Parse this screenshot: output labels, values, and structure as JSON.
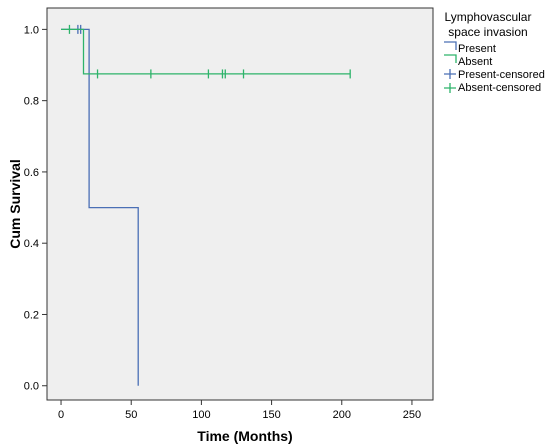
{
  "chart_data": {
    "type": "line",
    "title": "",
    "xlabel": "Time (Months)",
    "ylabel": "Cum Survival",
    "xlim": [
      -10,
      265
    ],
    "ylim": [
      -0.04,
      1.06
    ],
    "xticks": [
      "0",
      "50",
      "100",
      "150",
      "200",
      "250"
    ],
    "yticks": [
      "0.0",
      "0.2",
      "0.4",
      "0.6",
      "0.8",
      "1.0"
    ],
    "grid": false,
    "legend": {
      "title_lines": [
        "Lymphovascular",
        "space invasion"
      ],
      "placement": "right",
      "entries": [
        "Present",
        "Absent",
        "Present-censored",
        "Absent-censored"
      ]
    },
    "series": [
      {
        "name": "Present",
        "color": "#4a6fb5",
        "steps": [
          [
            0,
            1.0
          ],
          [
            20,
            1.0
          ],
          [
            20,
            0.5
          ],
          [
            55,
            0.5
          ],
          [
            55,
            0.0
          ]
        ],
        "censored": [
          [
            12,
            1.0
          ],
          [
            14,
            1.0
          ]
        ]
      },
      {
        "name": "Absent",
        "color": "#2db36a",
        "steps": [
          [
            0,
            1.0
          ],
          [
            16,
            1.0
          ],
          [
            16,
            0.875
          ],
          [
            206,
            0.875
          ]
        ],
        "censored": [
          [
            6,
            1.0
          ],
          [
            26,
            0.875
          ],
          [
            64,
            0.875
          ],
          [
            105,
            0.875
          ],
          [
            115,
            0.875
          ],
          [
            117,
            0.875
          ],
          [
            130,
            0.875
          ],
          [
            206,
            0.875
          ]
        ]
      }
    ]
  }
}
